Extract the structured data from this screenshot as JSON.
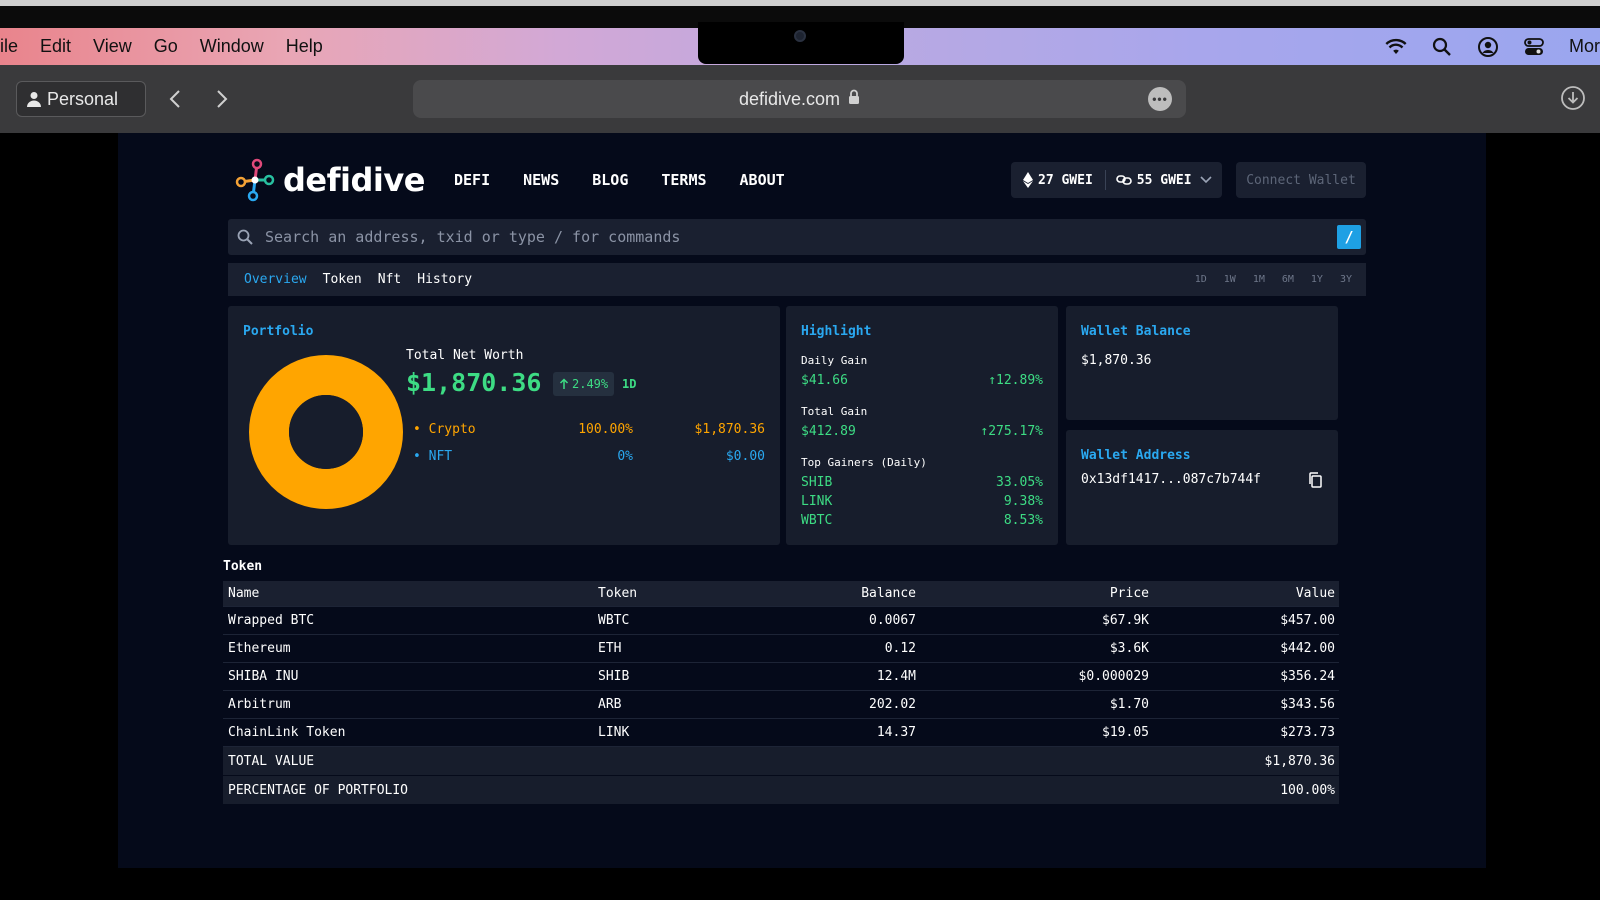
{
  "menubar": {
    "items": [
      "ile",
      "Edit",
      "View",
      "Go",
      "Window",
      "Help"
    ],
    "status_more": "Mor"
  },
  "browser": {
    "profile_label": "Personal",
    "url": "defidive.com"
  },
  "site": {
    "logo_text": "defidive",
    "nav": [
      "DEFI",
      "NEWS",
      "BLOG",
      "TERMS",
      "ABOUT"
    ],
    "gas": {
      "eth": "27 GWEI",
      "other": "55 GWEI"
    },
    "connect_label": "Connect Wallet",
    "search_placeholder": "Search an address, txid or type / for commands",
    "search_shortcut": "/",
    "tabs": [
      "Overview",
      "Token",
      "Nft",
      "History"
    ],
    "ranges": [
      "1D",
      "1W",
      "1M",
      "6M",
      "1Y",
      "3Y"
    ]
  },
  "portfolio": {
    "title": "Portfolio",
    "net_worth_label": "Total Net Worth",
    "net_worth_value": "$1,870.36",
    "change": "2.49%",
    "period": "1D",
    "allocation": [
      {
        "name": "Crypto",
        "percent": "100.00%",
        "value": "$1,870.36",
        "color": "#ffa500",
        "share": 100
      },
      {
        "name": "NFT",
        "percent": "0%",
        "value": "$0.00",
        "color": "#2aa8f0",
        "share": 0
      }
    ],
    "donut_colors": {
      "crypto": "#ffa500",
      "hole": "#171d2c"
    }
  },
  "highlight": {
    "title": "Highlight",
    "daily_gain_label": "Daily Gain",
    "daily_gain_value": "$41.66",
    "daily_gain_pct": "12.89%",
    "total_gain_label": "Total Gain",
    "total_gain_value": "$412.89",
    "total_gain_pct": "275.17%",
    "top_gainers_label": "Top Gainers (Daily)",
    "top_gainers": [
      {
        "symbol": "SHIB",
        "pct": "33.05%"
      },
      {
        "symbol": "LINK",
        "pct": "9.38%"
      },
      {
        "symbol": "WBTC",
        "pct": "8.53%"
      }
    ]
  },
  "wallet_balance": {
    "title": "Wallet Balance",
    "value": "$1,870.36"
  },
  "wallet_address": {
    "title": "Wallet Address",
    "value": "0x13df1417...087c7b744f"
  },
  "token_table": {
    "heading": "Token",
    "columns": [
      "Name",
      "Token",
      "Balance",
      "Price",
      "Value"
    ],
    "rows": [
      [
        "Wrapped BTC",
        "WBTC",
        "0.0067",
        "$67.9K",
        "$457.00"
      ],
      [
        "Ethereum",
        "ETH",
        "0.12",
        "$3.6K",
        "$442.00"
      ],
      [
        "SHIBA INU",
        "SHIB",
        "12.4M",
        "$0.000029",
        "$356.24"
      ],
      [
        "Arbitrum",
        "ARB",
        "202.02",
        "$1.70",
        "$343.56"
      ],
      [
        "ChainLink Token",
        "LINK",
        "14.37",
        "$19.05",
        "$273.73"
      ]
    ],
    "total_label": "TOTAL VALUE",
    "total_value": "$1,870.36",
    "percentage_label": "PERCENTAGE OF PORTFOLIO",
    "percentage_value": "100.00%"
  },
  "colors": {
    "accent_blue": "#2aa8f0",
    "positive_green": "#3ddc84",
    "crypto_orange": "#ffa500",
    "panel": "#171d2c",
    "page_bg": "#050a1a"
  }
}
